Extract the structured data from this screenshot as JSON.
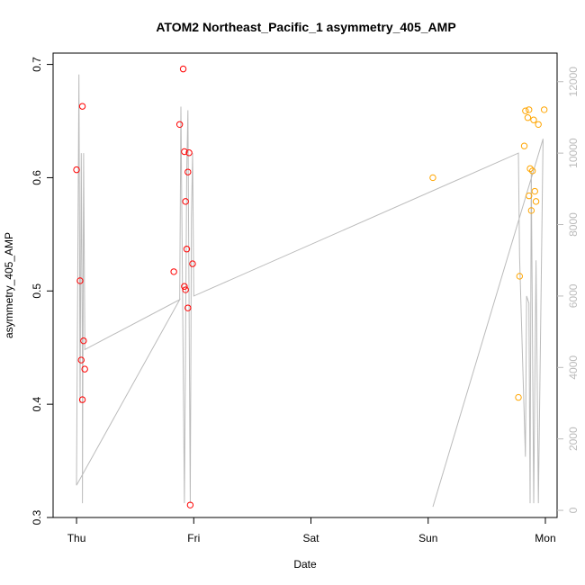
{
  "chart_data": {
    "type": "scatter",
    "title": "ATOM2 Northeast_Pacific_1 asymmetry_405_AMP",
    "xlabel": "Date",
    "ylabel": "asymmetry_405_AMP",
    "x_unit": "days",
    "x_ticks": [
      {
        "value": 0,
        "label": "Thu"
      },
      {
        "value": 1,
        "label": "Fri"
      },
      {
        "value": 2,
        "label": "Sat"
      },
      {
        "value": 3,
        "label": "Sun"
      },
      {
        "value": 4,
        "label": "Mon"
      }
    ],
    "xlim": [
      -0.2,
      4.1
    ],
    "ylim": [
      0.3,
      0.71
    ],
    "y_ticks": [
      0.3,
      0.4,
      0.5,
      0.6,
      0.7
    ],
    "y_tick_labels": [
      "0.3",
      "0.4",
      "0.5",
      "0.6",
      "0.7"
    ],
    "y2lim": [
      -200,
      12800
    ],
    "y2_ticks": [
      0,
      2000,
      4000,
      6000,
      8000,
      10000,
      12000
    ],
    "y2_tick_labels": [
      "0",
      "2000",
      "4000",
      "6000",
      "8000",
      "10000",
      "12000"
    ],
    "series": [
      {
        "color": "#ff0000",
        "marker": "open-circle",
        "axis": "left",
        "points": [
          [
            0.0,
            0.607
          ],
          [
            0.03,
            0.509
          ],
          [
            0.04,
            0.439
          ],
          [
            0.05,
            0.663
          ],
          [
            0.05,
            0.404
          ],
          [
            0.06,
            0.456
          ],
          [
            0.07,
            0.431
          ],
          [
            0.83,
            0.517
          ],
          [
            0.88,
            0.647
          ],
          [
            0.91,
            0.696
          ],
          [
            0.92,
            0.623
          ],
          [
            0.92,
            0.504
          ],
          [
            0.93,
            0.579
          ],
          [
            0.93,
            0.501
          ],
          [
            0.94,
            0.537
          ],
          [
            0.95,
            0.605
          ],
          [
            0.95,
            0.485
          ],
          [
            0.96,
            0.622
          ],
          [
            0.97,
            0.311
          ],
          [
            0.99,
            0.524
          ]
        ]
      },
      {
        "color": "#ffa500",
        "marker": "open-circle",
        "axis": "left",
        "points": [
          [
            3.04,
            0.6
          ],
          [
            3.77,
            0.406
          ],
          [
            3.78,
            0.513
          ],
          [
            3.82,
            0.628
          ],
          [
            3.83,
            0.659
          ],
          [
            3.85,
            0.653
          ],
          [
            3.86,
            0.66
          ],
          [
            3.86,
            0.584
          ],
          [
            3.87,
            0.608
          ],
          [
            3.88,
            0.571
          ],
          [
            3.89,
            0.606
          ],
          [
            3.9,
            0.651
          ],
          [
            3.91,
            0.588
          ],
          [
            3.92,
            0.579
          ],
          [
            3.94,
            0.647
          ],
          [
            3.99,
            0.66
          ]
        ]
      },
      {
        "color": "#bbbbbb",
        "marker": "line",
        "axis": "right",
        "points": [
          [
            0.0,
            700
          ],
          [
            0.02,
            12200
          ],
          [
            0.03,
            3000
          ],
          [
            0.04,
            10000
          ],
          [
            0.05,
            4000
          ],
          [
            0.05,
            200
          ],
          [
            0.06,
            10000
          ],
          [
            0.07,
            5000
          ],
          [
            0.07,
            4500
          ],
          [
            0.88,
            5900
          ],
          [
            0.0,
            700
          ],
          [
            0.88,
            5900
          ],
          [
            0.89,
            11300
          ],
          [
            0.92,
            200
          ],
          [
            0.94,
            9500
          ],
          [
            0.95,
            11200
          ],
          [
            0.97,
            200
          ],
          [
            0.98,
            8200
          ],
          [
            0.99,
            10000
          ],
          [
            1.0,
            6000
          ],
          [
            3.77,
            10000
          ],
          [
            3.78,
            7100
          ],
          [
            3.83,
            1500
          ],
          [
            3.84,
            6000
          ],
          [
            3.86,
            5800
          ],
          [
            3.87,
            200
          ],
          [
            3.88,
            9500
          ],
          [
            3.9,
            200
          ],
          [
            3.92,
            7000
          ],
          [
            3.94,
            200
          ],
          [
            3.98,
            10400
          ],
          [
            3.04,
            100
          ]
        ]
      }
    ],
    "grid": false,
    "legend": "none"
  }
}
